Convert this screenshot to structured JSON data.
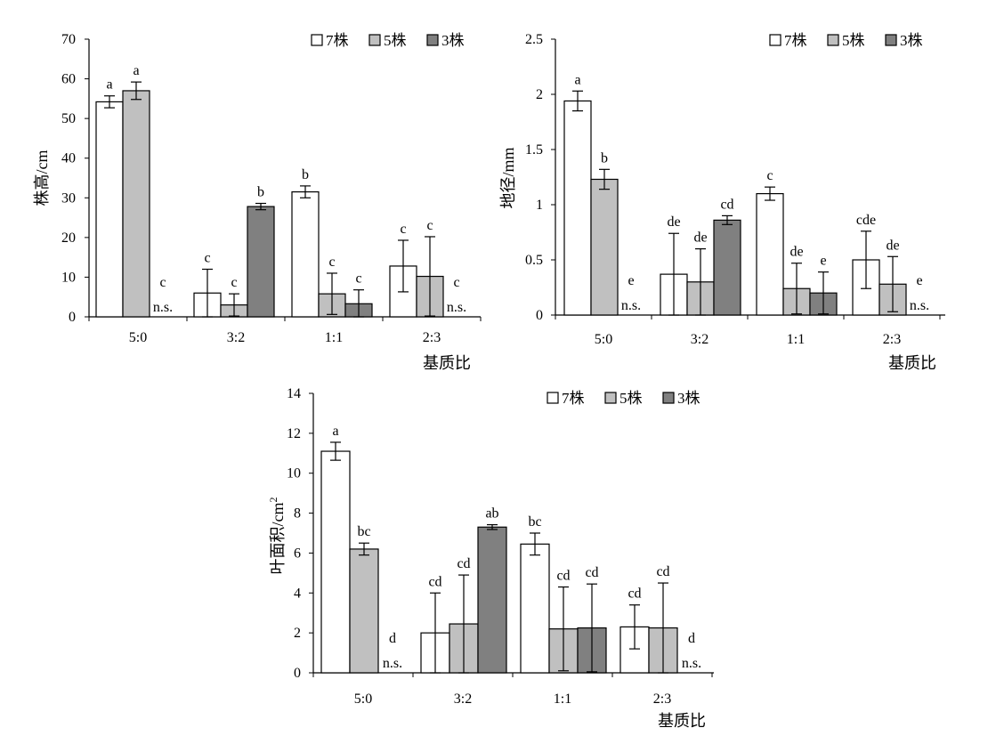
{
  "chart_data": [
    {
      "type": "bar",
      "categories": [
        "5:0",
        "3:2",
        "1:1",
        "2:3"
      ],
      "xlabel": "基质比",
      "ylabel": "株高/cm",
      "ylim": [
        0,
        70
      ],
      "yticks": [
        "0",
        "10",
        "20",
        "30",
        "40",
        "50",
        "60",
        "70"
      ],
      "legend_position": "top-right",
      "series": [
        {
          "name": "7株",
          "color": "#ffffff",
          "values": [
            54.2,
            6.0,
            31.5,
            12.8
          ],
          "errors": [
            1.5,
            6.0,
            1.5,
            6.5
          ],
          "labels": [
            "a",
            "c",
            "b",
            "c"
          ]
        },
        {
          "name": "5株",
          "color": "#c0c0c0",
          "values": [
            57.0,
            3.0,
            5.8,
            10.2
          ],
          "errors": [
            2.2,
            2.8,
            5.2,
            10.0
          ],
          "labels": [
            "a",
            "c",
            "c",
            "c"
          ]
        },
        {
          "name": "3株",
          "color": "#808080",
          "values": [
            0,
            27.8,
            3.3,
            0
          ],
          "errors": [
            0,
            0.8,
            3.5,
            0
          ],
          "labels": [
            "c",
            "b",
            "c",
            "c"
          ],
          "notes": [
            "n.s.",
            "",
            "",
            "n.s."
          ]
        }
      ]
    },
    {
      "type": "bar",
      "categories": [
        "5:0",
        "3:2",
        "1:1",
        "2:3"
      ],
      "xlabel": "基质比",
      "ylabel": "地径/mm",
      "ylim": [
        0,
        2.5
      ],
      "yticks": [
        "0",
        "0.5",
        "1",
        "1.5",
        "2",
        "2.5"
      ],
      "legend_position": "top-right",
      "series": [
        {
          "name": "7株",
          "color": "#ffffff",
          "values": [
            1.94,
            0.37,
            1.1,
            0.5
          ],
          "errors": [
            0.09,
            0.37,
            0.06,
            0.26
          ],
          "labels": [
            "a",
            "de",
            "c",
            "cde"
          ]
        },
        {
          "name": "5株",
          "color": "#c0c0c0",
          "values": [
            1.23,
            0.3,
            0.24,
            0.28
          ],
          "errors": [
            0.09,
            0.3,
            0.23,
            0.25
          ],
          "labels": [
            "b",
            "de",
            "de",
            "de"
          ]
        },
        {
          "name": "3株",
          "color": "#808080",
          "values": [
            0,
            0.86,
            0.2,
            0
          ],
          "errors": [
            0,
            0.04,
            0.19,
            0
          ],
          "labels": [
            "e",
            "cd",
            "e",
            "e"
          ],
          "notes": [
            "n.s.",
            "",
            "",
            "n.s."
          ]
        }
      ]
    },
    {
      "type": "bar",
      "categories": [
        "5:0",
        "3:2",
        "1:1",
        "2:3"
      ],
      "xlabel": "基质比",
      "ylabel": "叶面积/cm",
      "ylabel_sup": "2",
      "ylim": [
        0,
        14
      ],
      "yticks": [
        "0",
        "2",
        "4",
        "6",
        "8",
        "10",
        "12",
        "14"
      ],
      "legend_position": "top-center",
      "series": [
        {
          "name": "7株",
          "color": "#ffffff",
          "values": [
            11.1,
            2.0,
            6.45,
            2.3
          ],
          "errors": [
            0.45,
            2.0,
            0.55,
            1.1
          ],
          "labels": [
            "a",
            "cd",
            "bc",
            "cd"
          ]
        },
        {
          "name": "5株",
          "color": "#c0c0c0",
          "values": [
            6.2,
            2.45,
            2.2,
            2.25
          ],
          "errors": [
            0.3,
            2.45,
            2.1,
            2.25
          ],
          "labels": [
            "bc",
            "cd",
            "cd",
            "cd"
          ]
        },
        {
          "name": "3株",
          "color": "#808080",
          "values": [
            0,
            7.3,
            2.25,
            0
          ],
          "errors": [
            0,
            0.12,
            2.2,
            0
          ],
          "labels": [
            "d",
            "ab",
            "cd",
            "d"
          ],
          "notes": [
            "n.s.",
            "",
            "",
            "n.s."
          ]
        }
      ]
    }
  ]
}
